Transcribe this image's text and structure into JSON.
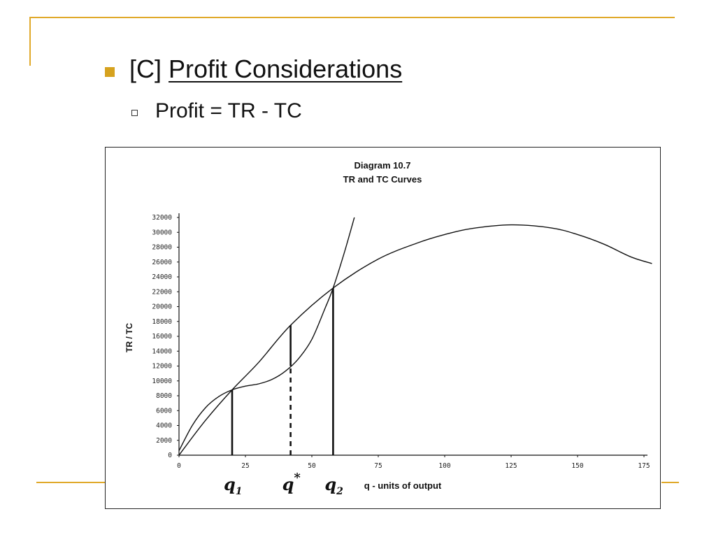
{
  "slide": {
    "heading_prefix": "[C]",
    "heading_text": "Profit Considerations",
    "subpoint": "Profit = TR - TC",
    "accent_color": "#E0A92A"
  },
  "chart_data": {
    "type": "line",
    "title": "Diagram 10.7",
    "subtitle": "TR and TC Curves",
    "xlabel": "q - units of output",
    "ylabel": "TR / TC",
    "xlim": [
      0,
      175
    ],
    "ylim": [
      0,
      32000
    ],
    "xticks": [
      0,
      25,
      50,
      75,
      100,
      125,
      150,
      175
    ],
    "yticks": [
      0,
      2000,
      4000,
      6000,
      8000,
      10000,
      12000,
      14000,
      16000,
      18000,
      20000,
      22000,
      24000,
      26000,
      28000,
      30000,
      32000
    ],
    "series": [
      {
        "key": "tr",
        "x": [
          0,
          10,
          20,
          30,
          42,
          58,
          75,
          90,
          100,
          110,
          125,
          140,
          150,
          160,
          170,
          178
        ],
        "y": [
          0,
          4700,
          8800,
          12500,
          17500,
          22500,
          26400,
          28600,
          29700,
          30500,
          31000,
          30600,
          29700,
          28400,
          26700,
          25800
        ]
      },
      {
        "key": "tc",
        "x": [
          0,
          5,
          10,
          15,
          20,
          25,
          30,
          35,
          40,
          45,
          50,
          55,
          58,
          62,
          66
        ],
        "y": [
          600,
          4000,
          6400,
          7900,
          8800,
          9300,
          9600,
          10200,
          11300,
          13000,
          15600,
          19800,
          22500,
          27000,
          32000
        ]
      }
    ],
    "markers": [
      {
        "label": "q",
        "subscript": "1",
        "x": 20,
        "y_from": 0,
        "y_to": 8800,
        "style": "solid"
      },
      {
        "label": "q",
        "superscript": "*",
        "x": 42,
        "y_from": 12000,
        "y_to": 17500,
        "style": "solid"
      },
      {
        "label": "q",
        "superscript": "*",
        "x": 42,
        "y_from": 0,
        "y_to": 12000,
        "style": "dashed"
      },
      {
        "label": "q",
        "subscript": "2",
        "x": 58,
        "y_from": 0,
        "y_to": 22500,
        "style": "solid"
      }
    ]
  }
}
